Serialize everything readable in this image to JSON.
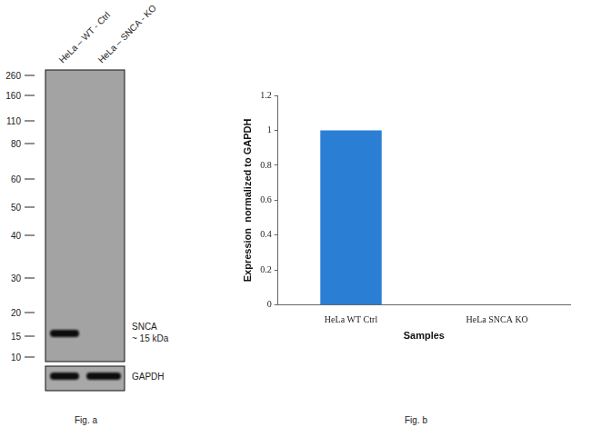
{
  "blot": {
    "lanes": [
      "HeLa – WT - Ctrl",
      "HeLa – SNCA - KO"
    ],
    "markers": [
      260,
      160,
      110,
      80,
      60,
      50,
      40,
      30,
      20,
      15,
      10
    ],
    "targets": [
      {
        "label": "SNCA",
        "sublabel": "~ 15 kDa",
        "kda": 15,
        "detected": [
          true,
          false
        ]
      },
      {
        "label": "GAPDH",
        "detected": [
          true,
          true
        ]
      }
    ],
    "caption": "Fig. a"
  },
  "chart_data": {
    "type": "bar",
    "categories": [
      "HeLa WT Ctrl",
      "HeLa SNCA KO"
    ],
    "values": [
      1,
      0
    ],
    "color": "#2a7fd4",
    "xlabel": "Samples",
    "ylabel": "Expression  normalized to GAPDH",
    "ylim": [
      0,
      1.2
    ],
    "yticks": [
      0,
      0.2,
      0.4,
      0.6,
      0.8,
      1,
      1.2
    ],
    "grid": false,
    "caption": "Fig. b"
  }
}
